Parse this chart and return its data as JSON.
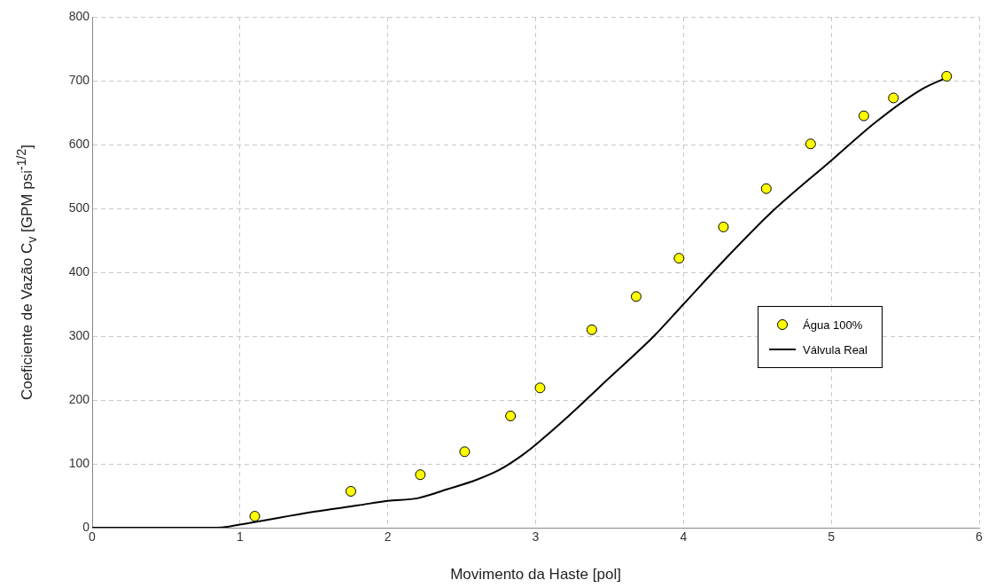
{
  "chart_data": {
    "type": "scatter",
    "xlabel": "Movimento da Haste [pol]",
    "ylabel": "Coeficiente de Vazão C$_{v}$ [GPM psi$^{-1/2}$]",
    "xlim": [
      0,
      6
    ],
    "xticks": [
      0,
      1,
      2,
      3,
      4,
      5,
      6
    ],
    "ylim": [
      0,
      800
    ],
    "yticks": [
      0,
      100,
      200,
      300,
      400,
      500,
      600,
      700,
      800
    ],
    "grid": true,
    "legend": "right",
    "series": [
      {
        "name": "Água 100%",
        "marker": "circle",
        "color": "#ffff00",
        "x": [
          1.1,
          1.75,
          2.22,
          2.52,
          2.83,
          3.03,
          3.38,
          3.68,
          3.97,
          4.27,
          4.56,
          4.86,
          5.22,
          5.42,
          5.78
        ],
        "values": [
          18,
          57,
          83,
          119,
          175,
          219,
          310,
          362,
          422,
          471,
          531,
          601,
          645,
          673,
          707
        ]
      },
      {
        "name": "Válvula Real",
        "type": "line",
        "marker": "none",
        "color": "#000000",
        "line_style": "solid",
        "x": [
          0,
          0.85,
          1.0,
          1.5,
          1.8,
          2.0,
          2.2,
          2.4,
          2.6,
          2.75,
          2.9,
          3.0,
          3.2,
          3.5,
          3.8,
          4.0,
          4.3,
          4.6,
          5.0,
          5.3,
          5.6,
          5.78
        ],
        "values": [
          0,
          0,
          5,
          25,
          35,
          42,
          46,
          60,
          75,
          90,
          112,
          130,
          170,
          235,
          300,
          350,
          425,
          495,
          575,
          635,
          685,
          705
        ]
      }
    ]
  }
}
